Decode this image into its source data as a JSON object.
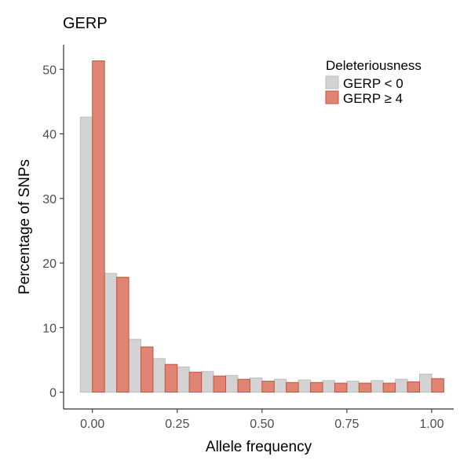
{
  "chart_data": {
    "type": "bar",
    "title": "GERP",
    "xlabel": "Allele frequency",
    "ylabel": "Percentage of SNPs",
    "xlim": [
      -0.085,
      1.065
    ],
    "ylim": [
      -2.6,
      53.8
    ],
    "x_ticks": [
      {
        "value": 0.0,
        "label": "0.00"
      },
      {
        "value": 0.25,
        "label": "0.25"
      },
      {
        "value": 0.5,
        "label": "0.50"
      },
      {
        "value": 0.75,
        "label": "0.75"
      },
      {
        "value": 1.0,
        "label": "1.00"
      }
    ],
    "y_ticks": [
      {
        "value": 0,
        "label": "0"
      },
      {
        "value": 10,
        "label": "10"
      },
      {
        "value": 20,
        "label": "20"
      },
      {
        "value": 30,
        "label": "30"
      },
      {
        "value": 40,
        "label": "40"
      },
      {
        "value": 50,
        "label": "50"
      }
    ],
    "bin_width": 0.0714,
    "x": [
      0.0,
      0.0714,
      0.1429,
      0.2143,
      0.2857,
      0.3571,
      0.4286,
      0.5,
      0.5714,
      0.6429,
      0.7143,
      0.7857,
      0.8571,
      0.9286,
      1.0
    ],
    "series": [
      {
        "name": "GERP < 0",
        "color": "#d3d3d3",
        "stroke": "#bebebe",
        "values": [
          42.6,
          18.4,
          8.2,
          5.2,
          3.9,
          3.2,
          2.6,
          2.2,
          2.0,
          1.9,
          1.8,
          1.7,
          1.8,
          2.0,
          2.8
        ]
      },
      {
        "name": "GERP ≥ 4",
        "color": "#e08474",
        "stroke": "#c8503e",
        "values": [
          51.3,
          17.8,
          7.0,
          4.3,
          3.1,
          2.5,
          2.0,
          1.7,
          1.5,
          1.5,
          1.4,
          1.4,
          1.4,
          1.6,
          2.1
        ]
      }
    ],
    "legend": {
      "title": "Deleteriousness",
      "position": "top-right"
    },
    "grid": false
  }
}
